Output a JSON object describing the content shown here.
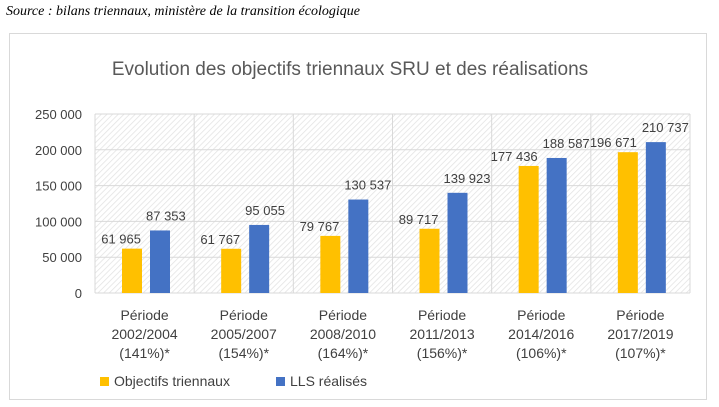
{
  "source": "Source : bilans triennaux, ministère de la transition écologique",
  "chart_data": {
    "type": "bar",
    "title": "Evolution des objectifs triennaux SRU et des réalisations",
    "categories": [
      [
        "Période",
        "2002/2004",
        "(141%)*"
      ],
      [
        "Période",
        "2005/2007",
        "(154%)*"
      ],
      [
        "Période",
        "2008/2010",
        "(164%)*"
      ],
      [
        "Période",
        "2011/2013",
        "(156%)*"
      ],
      [
        "Période",
        "2014/2016",
        "(106%)*"
      ],
      [
        "Période",
        "2017/2019",
        "(107%)*"
      ]
    ],
    "series": [
      {
        "name": "Objectifs triennaux",
        "color": "#FFC000",
        "values": [
          61965,
          61767,
          79767,
          89717,
          177436,
          196671
        ],
        "labels": [
          "61 965",
          "61 767",
          "79 767",
          "89 717",
          "177 436",
          "196 671"
        ]
      },
      {
        "name": "LLS réalisés",
        "color": "#4472C4",
        "values": [
          87353,
          95055,
          130537,
          139923,
          188587,
          210737
        ],
        "labels": [
          "87 353",
          "95 055",
          "130 537",
          "139 923",
          "188 587",
          "210 737"
        ]
      }
    ],
    "ylim": [
      0,
      250000
    ],
    "yticks": [
      0,
      50000,
      100000,
      150000,
      200000,
      250000
    ],
    "ytick_labels": [
      "0",
      "50 000",
      "100 000",
      "150 000",
      "200 000",
      "250 000"
    ],
    "grid": true,
    "legend": "bottom-left"
  }
}
